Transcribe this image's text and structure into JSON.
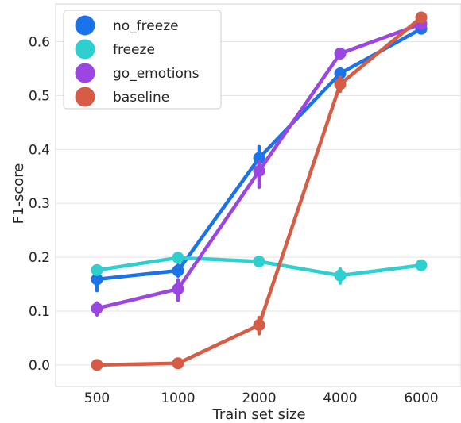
{
  "chart_data": {
    "type": "line",
    "xlabel": "Train set size",
    "ylabel": "F1-score",
    "categories": [
      "500",
      "1000",
      "2000",
      "4000",
      "6000"
    ],
    "ylim": [
      -0.04,
      0.67
    ],
    "yticks": [
      "0.0",
      "0.1",
      "0.2",
      "0.3",
      "0.4",
      "0.5",
      "0.6"
    ],
    "grid": "horizontal",
    "legend_position": "top-left",
    "series": [
      {
        "name": "no_freeze",
        "color": "#1a73e8",
        "values": [
          0.159,
          0.175,
          0.384,
          0.541,
          0.624
        ],
        "err_low": [
          0.138,
          0.165,
          0.372,
          0.528,
          0.617
        ],
        "err_high": [
          0.173,
          0.185,
          0.405,
          0.55,
          0.631
        ]
      },
      {
        "name": "freeze",
        "color": "#2ecfcf",
        "values": [
          0.176,
          0.199,
          0.192,
          0.166,
          0.185
        ],
        "err_low": [
          0.17,
          0.193,
          0.185,
          0.152,
          0.178
        ],
        "err_high": [
          0.183,
          0.205,
          0.198,
          0.178,
          0.192
        ]
      },
      {
        "name": "go_emotions",
        "color": "#9b46e3",
        "values": [
          0.105,
          0.141,
          0.36,
          0.578,
          0.633
        ],
        "err_low": [
          0.093,
          0.12,
          0.33,
          0.57,
          0.627
        ],
        "err_high": [
          0.115,
          0.158,
          0.378,
          0.586,
          0.64
        ]
      },
      {
        "name": "baseline",
        "color": "#d65c45",
        "values": [
          0.0,
          0.003,
          0.074,
          0.521,
          0.645
        ],
        "err_low": [
          -0.002,
          0.0,
          0.058,
          0.508,
          0.64
        ],
        "err_high": [
          0.002,
          0.006,
          0.088,
          0.534,
          0.65
        ]
      }
    ]
  }
}
